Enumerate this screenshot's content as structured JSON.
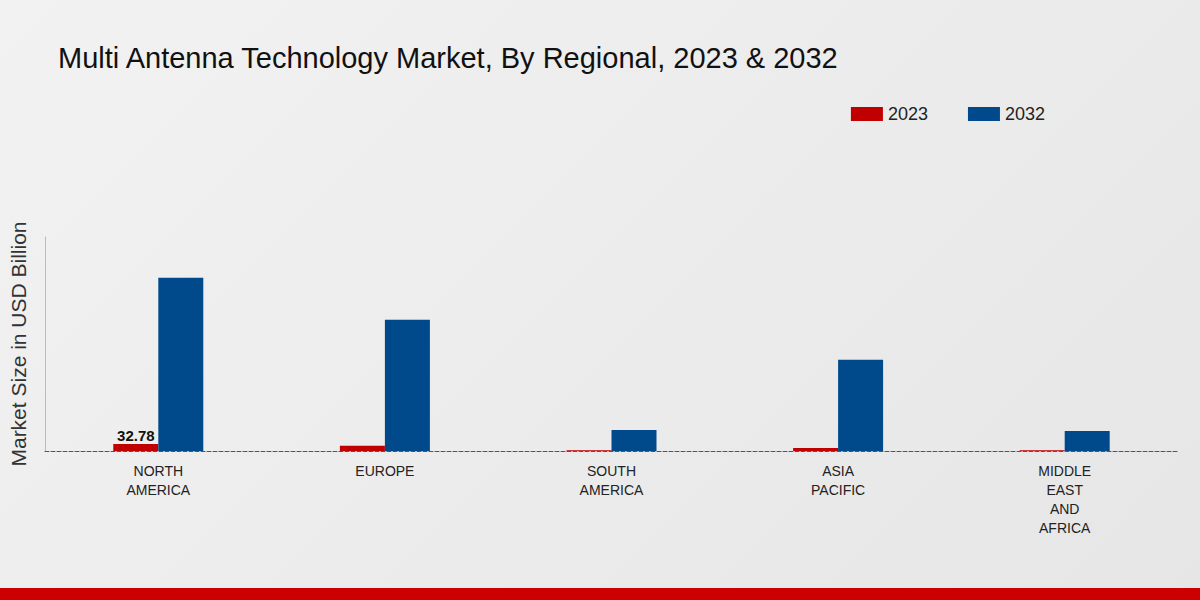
{
  "chart_data": {
    "type": "bar",
    "title": "Multi Antenna Technology Market, By Regional, 2023 & 2032",
    "y_label": "Market Size in USD Billion",
    "categories": [
      "NORTH\nAMERICA",
      "EUROPE",
      "SOUTH\nAMERICA",
      "ASIA\nPACIFIC",
      "MIDDLE\nEAST\nAND\nAFRICA"
    ],
    "series": [
      {
        "name": "2023",
        "color": "#c00000",
        "values": [
          32.78,
          25,
          3,
          14,
          3
        ],
        "value_labels": [
          "32.78",
          null,
          null,
          null,
          null
        ]
      },
      {
        "name": "2032",
        "color": "#004a8c",
        "values": [
          810,
          613,
          98,
          426,
          94
        ]
      }
    ],
    "ylim": [
      0,
      1000
    ],
    "yticks": [
      0
    ],
    "grid": false,
    "legend": "upper right",
    "tick_labels": "x"
  }
}
